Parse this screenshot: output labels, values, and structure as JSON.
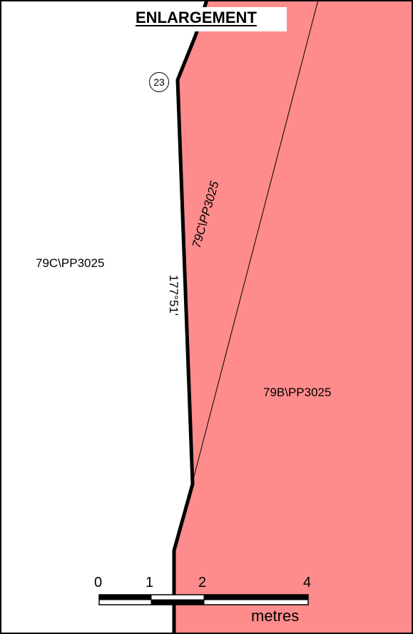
{
  "title": "ENLARGEMENT",
  "station": {
    "number": "23"
  },
  "parcels": {
    "left": "79C\\PP3025",
    "strip": "79C\\PP3025",
    "right": "79B\\PP3025"
  },
  "bearing": "177°51'",
  "scale_bar": {
    "tick_labels": [
      "0",
      "1",
      "2",
      "4"
    ],
    "unit": "metres"
  },
  "colors": {
    "parcel_fill": "#ff8c8c",
    "boundary": "#000000",
    "background": "#ffffff"
  }
}
